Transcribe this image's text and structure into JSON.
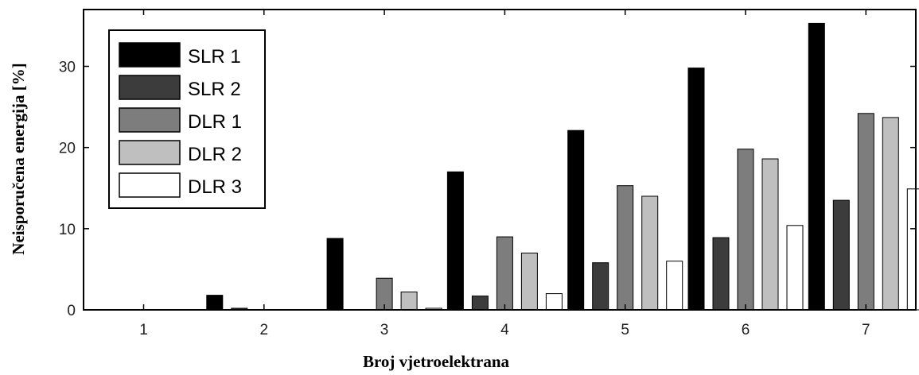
{
  "chart_data": {
    "type": "bar",
    "title": "",
    "xlabel": "Broj vjetroelektrana",
    "ylabel": "Neisporučena energija [%]",
    "categories": [
      "1",
      "2",
      "3",
      "4",
      "5",
      "6",
      "7"
    ],
    "yticks": [
      "0",
      "10",
      "20",
      "30"
    ],
    "ylim": [
      0,
      37
    ],
    "grid": false,
    "legend_position": "top-left",
    "series": [
      {
        "name": "SLR 1",
        "color": "#000000",
        "values": [
          0,
          1.8,
          8.8,
          17.0,
          22.1,
          29.8,
          35.3
        ]
      },
      {
        "name": "SLR 2",
        "color": "#3c3c3c",
        "values": [
          0,
          0.2,
          0,
          1.7,
          5.8,
          8.9,
          13.5
        ]
      },
      {
        "name": "DLR 1",
        "color": "#7d7d7d",
        "values": [
          0,
          0,
          3.9,
          9.0,
          15.3,
          19.8,
          24.2
        ]
      },
      {
        "name": "DLR 2",
        "color": "#bfbfbf",
        "values": [
          0,
          0,
          2.2,
          7.0,
          14.0,
          18.6,
          23.7
        ]
      },
      {
        "name": "DLR 3",
        "color": "#ffffff",
        "values": [
          0,
          0,
          0.2,
          2.0,
          6.0,
          10.4,
          14.9
        ]
      }
    ]
  }
}
